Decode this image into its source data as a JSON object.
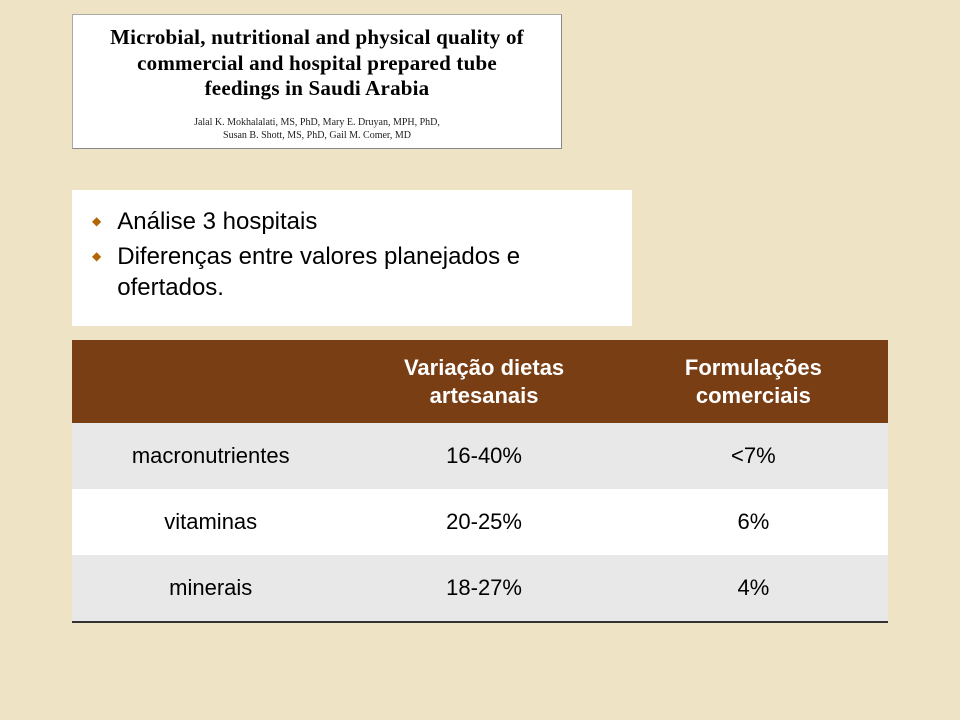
{
  "citation": {
    "title_line1": "Microbial, nutritional and physical quality of",
    "title_line2": "commercial and hospital prepared tube",
    "title_line3": "feedings in Saudi Arabia",
    "authors_line1": "Jalal K. Mokhalalati, MS, PhD, Mary E. Druyan, MPH, PhD,",
    "authors_line2": "Susan B. Shott, MS, PhD, Gail M. Comer, MD"
  },
  "bullets": [
    "Análise 3 hospitais",
    "Diferenças entre valores planejados e ofertados."
  ],
  "table": {
    "header": {
      "col1": "",
      "col2_line1": "Variação dietas",
      "col2_line2": "artesanais",
      "col3_line1": "Formulações",
      "col3_line2": "comerciais"
    },
    "rows": [
      {
        "label": "macronutrientes",
        "v1": "16-40%",
        "v2": "<7%"
      },
      {
        "label": "vitaminas",
        "v1": "20-25%",
        "v2": "6%"
      },
      {
        "label": "minerais",
        "v1": "18-27%",
        "v2": "4%"
      }
    ]
  },
  "colors": {
    "slide_bg": "#eee3c5",
    "panel_bg": "#ffffff",
    "table_header_bg": "#7a3e14",
    "table_header_text": "#ffffff",
    "row_alt_bg": "#e8e8e8",
    "bullet_color": "#b46504"
  }
}
